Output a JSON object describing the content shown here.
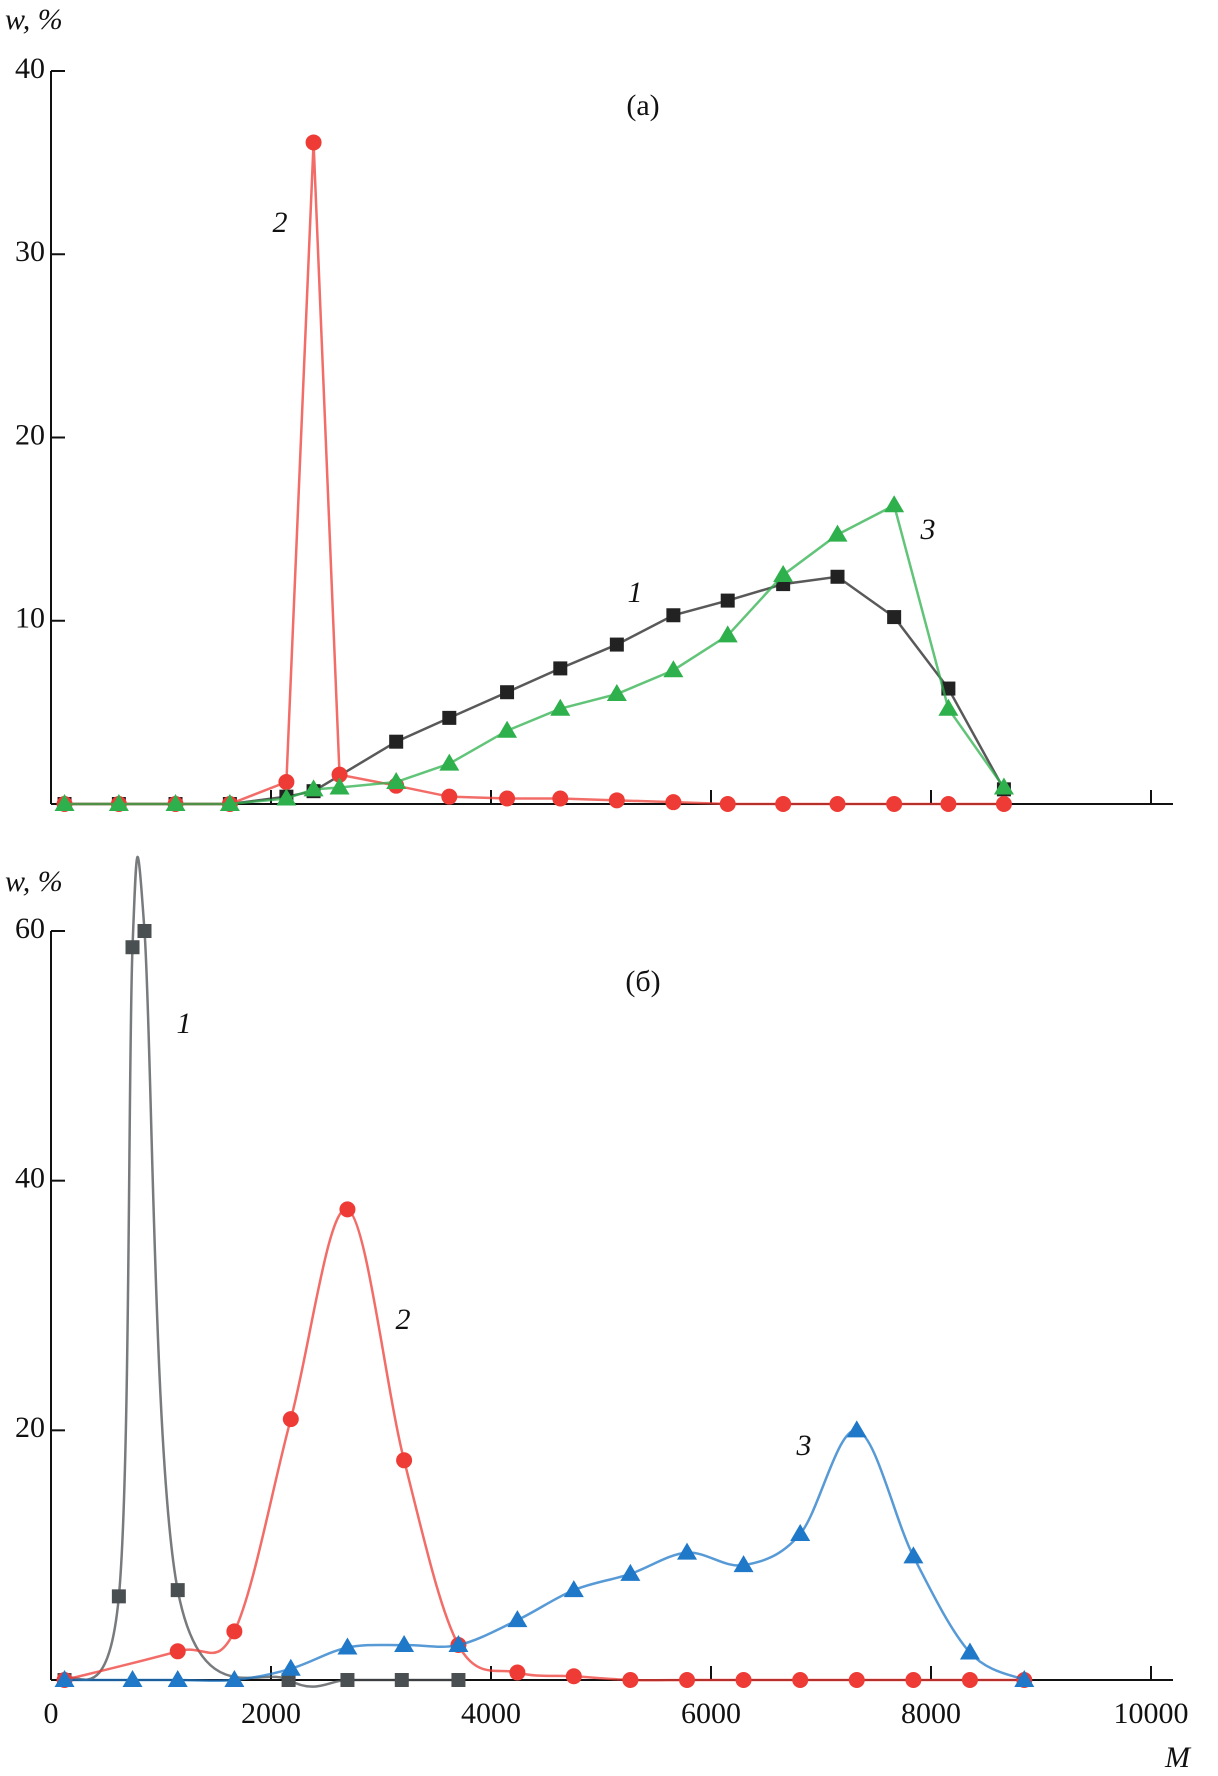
{
  "chart_data": [
    {
      "type": "line",
      "panel_label": "(a)",
      "y_label": "w, %",
      "xlim": [
        0,
        10200
      ],
      "ylim": [
        0,
        40
      ],
      "xticks": [
        0,
        2000,
        4000,
        6000,
        8000,
        10000
      ],
      "yticks": [
        10,
        20,
        30,
        40
      ],
      "smooth": false,
      "series": [
        {
          "name": "1",
          "color": "#222222",
          "marker": "square",
          "x": [
            123,
            617,
            1132,
            1626,
            2140,
            2387,
            3138,
            3621,
            4146,
            4630,
            5144,
            5658,
            6152,
            6656,
            7150,
            7665,
            8158,
            8663
          ],
          "values": [
            0,
            0,
            0,
            0,
            0.4,
            0.7,
            3.4,
            4.7,
            6.1,
            7.4,
            8.7,
            10.3,
            11.1,
            12.0,
            12.4,
            10.2,
            6.3,
            0.8
          ]
        },
        {
          "name": "2",
          "color": "#ee3b35",
          "marker": "circle",
          "x": [
            123,
            617,
            1132,
            1626,
            2140,
            2387,
            2623,
            3138,
            3621,
            4146,
            4630,
            5144,
            5658,
            6152,
            6656,
            7150,
            7665,
            8158,
            8663
          ],
          "values": [
            0,
            0,
            0,
            0,
            1.2,
            36.1,
            1.6,
            1.0,
            0.4,
            0.3,
            0.3,
            0.2,
            0.1,
            0,
            0,
            0,
            0,
            0,
            0
          ]
        },
        {
          "name": "3",
          "color": "#2eb04c",
          "marker": "triangle",
          "x": [
            123,
            617,
            1132,
            1626,
            2140,
            2387,
            2623,
            3138,
            3621,
            4146,
            4630,
            5144,
            5658,
            6152,
            6656,
            7150,
            7665,
            8158,
            8663
          ],
          "values": [
            0,
            0,
            0,
            0,
            0.3,
            0.8,
            0.9,
            1.2,
            2.2,
            4.0,
            5.2,
            6.0,
            7.3,
            9.2,
            12.5,
            14.7,
            16.3,
            5.2,
            0.9
          ]
        }
      ]
    },
    {
      "type": "line",
      "panel_label": "(б)",
      "y_label": "w, %",
      "x_label": "M",
      "xlim": [
        0,
        10200
      ],
      "ylim": [
        0,
        60
      ],
      "xticks": [
        0,
        2000,
        4000,
        6000,
        8000,
        10000
      ],
      "yticks": [
        20,
        40,
        60
      ],
      "smooth": true,
      "series": [
        {
          "name": "1",
          "color": "#4a4f52",
          "marker": "square",
          "x": [
            123,
            617,
            741,
            850,
            1152,
            2160,
            2695,
            3189,
            3704
          ],
          "values": [
            0,
            6.7,
            58.7,
            60,
            7.2,
            0,
            0,
            0,
            0
          ]
        },
        {
          "name": "2",
          "color": "#ee3b35",
          "marker": "circle",
          "x": [
            123,
            1152,
            1667,
            2180,
            2695,
            3210,
            3704,
            4240,
            4753,
            5267,
            5782,
            6296,
            6811,
            7325,
            7840,
            8354,
            8848
          ],
          "values": [
            0,
            2.3,
            3.9,
            20.9,
            37.7,
            17.6,
            2.8,
            0.6,
            0.3,
            0,
            0,
            0,
            0,
            0,
            0,
            0,
            0
          ]
        },
        {
          "name": "3",
          "color": "#1f78c8",
          "marker": "triangle",
          "x": [
            123,
            741,
            1152,
            1667,
            2180,
            2695,
            3210,
            3704,
            4240,
            4753,
            5267,
            5782,
            6296,
            6811,
            7325,
            7840,
            8354,
            8848
          ],
          "values": [
            0,
            0,
            0,
            0,
            0.9,
            2.6,
            2.8,
            2.8,
            4.8,
            7.2,
            8.5,
            10.2,
            9.2,
            11.7,
            20.0,
            9.9,
            2.2,
            0
          ]
        }
      ]
    }
  ]
}
